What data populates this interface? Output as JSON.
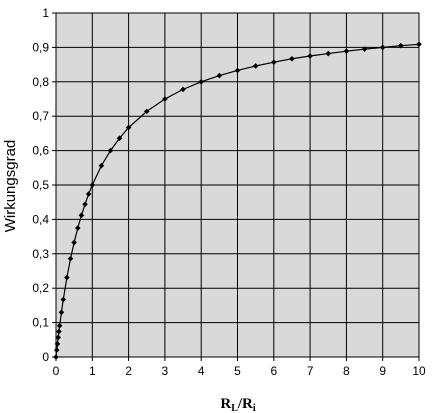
{
  "chart_data": {
    "type": "line",
    "title": "",
    "xlabel": {
      "main1": "R",
      "sub1": "L",
      "slash": "/",
      "main2": "R",
      "sub2": "i"
    },
    "ylabel": "Wirkungsgrad",
    "xlim": [
      0,
      10
    ],
    "ylim": [
      0,
      1
    ],
    "xticks": [
      "0",
      "1",
      "2",
      "3",
      "4",
      "5",
      "6",
      "7",
      "8",
      "9",
      "10"
    ],
    "yticks": [
      "0",
      "0,1",
      "0,2",
      "0,3",
      "0,4",
      "0,5",
      "0,6",
      "0,7",
      "0,8",
      "0,9",
      "1"
    ],
    "grid": true,
    "plot_background": "#d9d9d9",
    "line_color": "#000000",
    "series": [
      {
        "x": [
          0,
          0.02,
          0.04,
          0.06,
          0.08,
          0.1,
          0.15,
          0.2,
          0.3,
          0.4,
          0.5,
          0.6,
          0.7,
          0.8,
          0.9,
          1.0,
          1.25,
          1.5,
          1.75,
          2.0,
          2.5,
          3.0,
          3.5,
          4.0,
          4.5,
          5.0,
          5.5,
          6.0,
          6.5,
          7.0,
          7.5,
          8.0,
          8.5,
          9.0,
          9.5,
          10.0
        ],
        "y": [
          0,
          0.02,
          0.038,
          0.057,
          0.074,
          0.091,
          0.13,
          0.167,
          0.231,
          0.286,
          0.333,
          0.375,
          0.412,
          0.444,
          0.474,
          0.5,
          0.556,
          0.6,
          0.636,
          0.667,
          0.714,
          0.75,
          0.778,
          0.8,
          0.818,
          0.833,
          0.846,
          0.857,
          0.867,
          0.875,
          0.882,
          0.889,
          0.895,
          0.9,
          0.905,
          0.909
        ]
      }
    ]
  }
}
